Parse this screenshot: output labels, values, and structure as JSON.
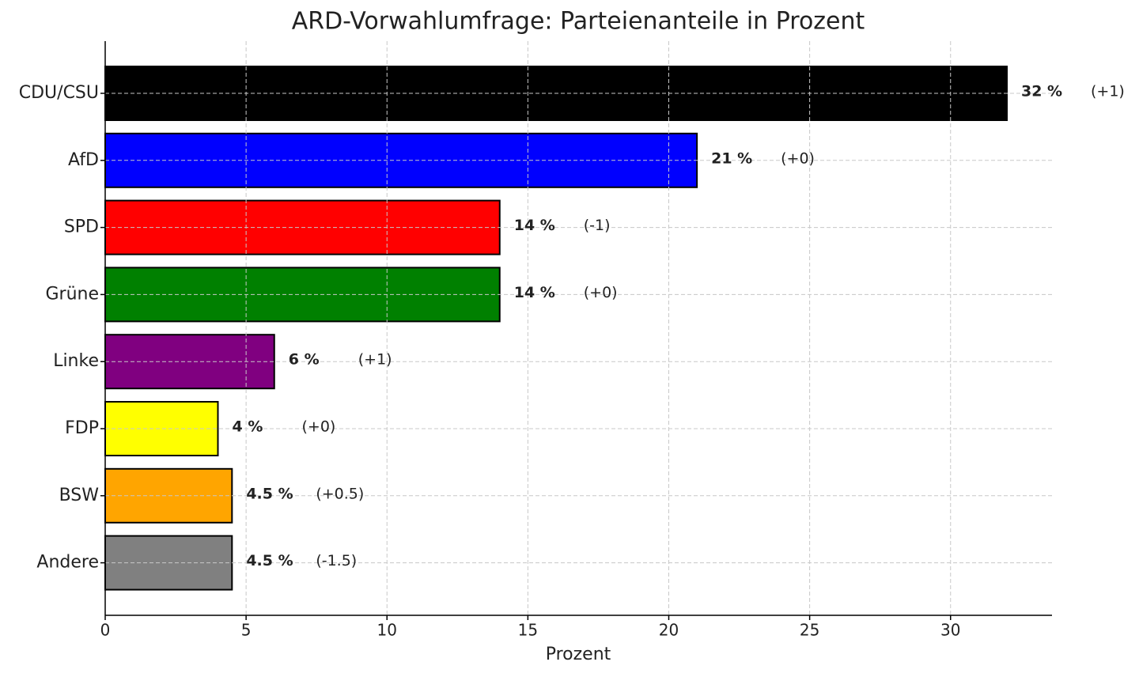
{
  "chart_data": {
    "type": "barh",
    "title": "ARD-Vorwahlumfrage: Parteienanteile in Prozent",
    "x_label": "Prozent",
    "categories": [
      "CDU/CSU",
      "AfD",
      "SPD",
      "Grüne",
      "Linke",
      "FDP",
      "BSW",
      "Andere"
    ],
    "values": [
      32,
      21,
      14,
      14,
      6,
      4,
      4.5,
      4.5
    ],
    "value_labels": [
      "32 %",
      "21 %",
      "14 %",
      "14 %",
      "6 %",
      "4 %",
      "4.5 %",
      "4.5 %"
    ],
    "change_labels": [
      "(+1)",
      "(+0)",
      "(-1)",
      "(+0)",
      "(+1)",
      "(+0)",
      "(+0.5)",
      "(-1.5)"
    ],
    "colors": [
      "#000000",
      "#0000ff",
      "#ff0000",
      "#008000",
      "#800080",
      "#ffff00",
      "#ffa500",
      "#808080"
    ],
    "xlim": [
      0,
      33.6
    ],
    "xticks": [
      0,
      5,
      10,
      15,
      20,
      25,
      30
    ],
    "grid": true
  }
}
